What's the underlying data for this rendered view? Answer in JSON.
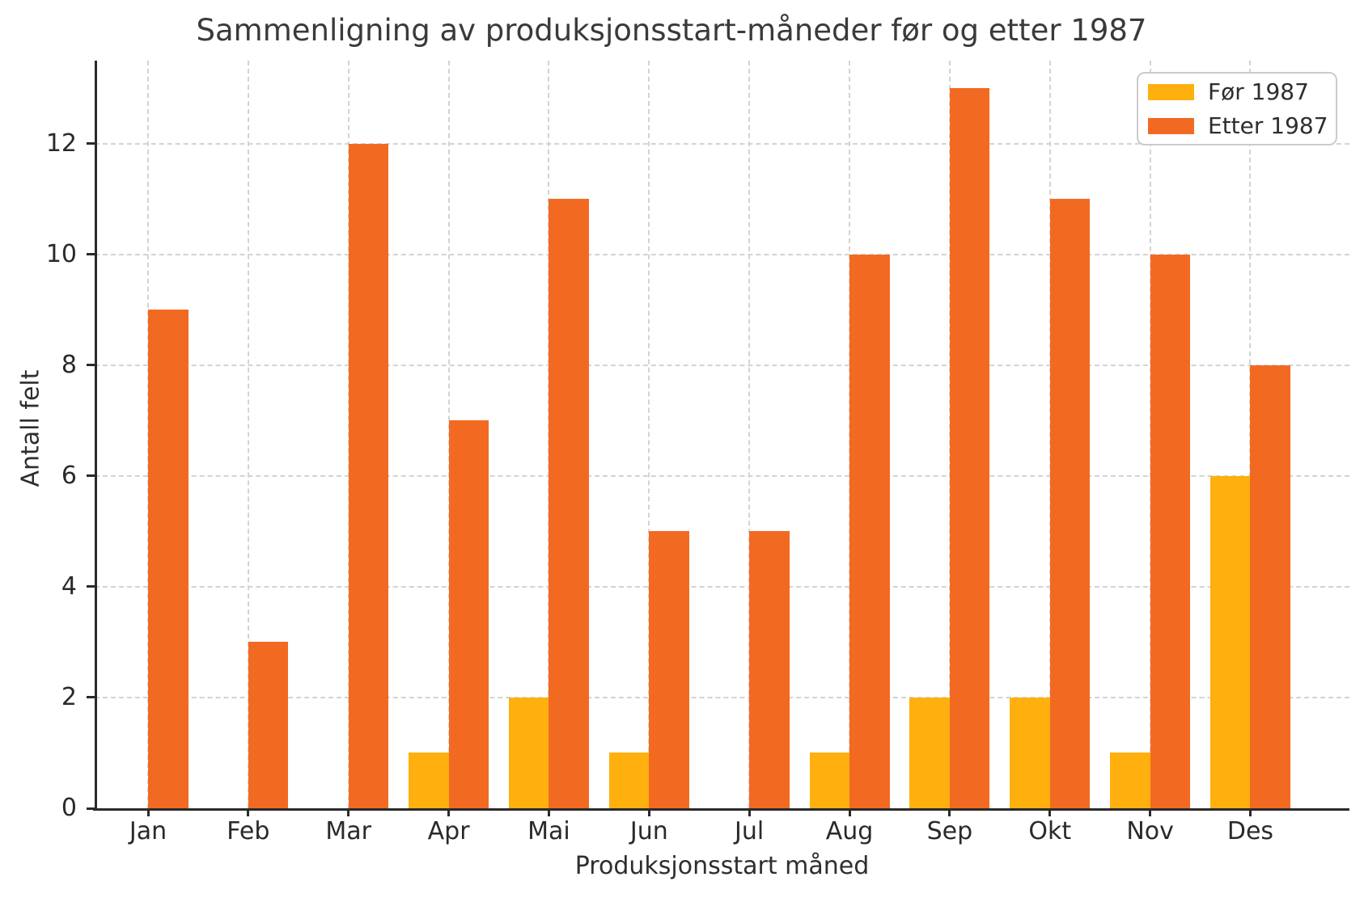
{
  "figure": {
    "background": "#ffffff"
  },
  "chart_data": {
    "type": "bar",
    "title": "Sammenligning av produksjonsstart-måneder før og etter 1987",
    "xlabel": "Produksjonsstart måned",
    "ylabel": "Antall felt",
    "categories": [
      "Jan",
      "Feb",
      "Mar",
      "Apr",
      "Mai",
      "Jun",
      "Jul",
      "Aug",
      "Sep",
      "Okt",
      "Nov",
      "Des"
    ],
    "series": [
      {
        "name": "Før 1987",
        "color": "#FFB00E",
        "values": [
          0,
          0,
          0,
          1,
          2,
          1,
          0,
          1,
          2,
          2,
          1,
          6
        ]
      },
      {
        "name": "Etter 1987",
        "color": "#F26A22",
        "values": [
          9,
          3,
          12,
          7,
          11,
          5,
          5,
          10,
          13,
          11,
          10,
          8
        ]
      }
    ],
    "yticks": [
      0,
      2,
      4,
      6,
      8,
      10,
      12
    ],
    "ylim": [
      0,
      13.5
    ],
    "grid": "both-dashed",
    "legend_position": "upper right",
    "style": {
      "grid_color": "#d3d3d3",
      "spine_color": "#2a2a2a",
      "text_color": "#2e2e2e",
      "title_color": "#3a3a3a"
    }
  }
}
